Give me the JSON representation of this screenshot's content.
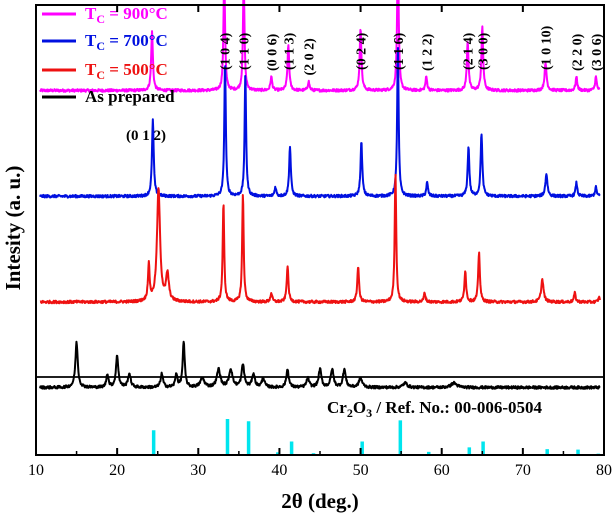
{
  "chart_data": {
    "type": "line",
    "title": "",
    "xlabel": "2θ (deg.)",
    "ylabel": "Intesity (a. u.)",
    "xlim": [
      10,
      80
    ],
    "x_ticks": [
      10,
      20,
      30,
      40,
      50,
      60,
      70,
      80
    ],
    "y_ticks": "none",
    "grid": false,
    "legend_position": "top-left",
    "colors": {
      "tc900": "#ff00ff",
      "tc700": "#0010e0",
      "tc500": "#ee1111",
      "asprep": "#000000",
      "ref": "#00e5ee"
    },
    "legend": [
      {
        "key": "tc900",
        "name": "T_C = 900°C",
        "base": "T",
        "sub": "C",
        "rest": " = 900°C"
      },
      {
        "key": "tc700",
        "name": "T_C = 700°C",
        "base": "T",
        "sub": "C",
        "rest": " = 700°C"
      },
      {
        "key": "tc500",
        "name": "T_C = 500°C",
        "base": "T",
        "sub": "C",
        "rest": " = 500°C"
      },
      {
        "key": "asprep",
        "name": "As prepared",
        "base": "As prepared",
        "sub": "",
        "rest": ""
      }
    ],
    "series": [
      {
        "key": "tc900",
        "name": "T_C = 900°C",
        "baseline": 0.81,
        "peaks": [
          [
            24.3,
            0.13,
            0.25
          ],
          [
            33.2,
            0.27,
            0.22
          ],
          [
            35.6,
            0.25,
            0.22
          ],
          [
            39.0,
            0.03,
            0.25
          ],
          [
            41.1,
            0.1,
            0.25
          ],
          [
            43.6,
            0.02,
            0.25
          ],
          [
            50.0,
            0.14,
            0.25
          ],
          [
            54.6,
            0.32,
            0.22
          ],
          [
            58.1,
            0.03,
            0.25
          ],
          [
            63.2,
            0.11,
            0.25
          ],
          [
            65.0,
            0.14,
            0.25
          ],
          [
            72.8,
            0.06,
            0.3
          ],
          [
            76.6,
            0.03,
            0.25
          ],
          [
            79.0,
            0.03,
            0.25
          ]
        ]
      },
      {
        "key": "tc700",
        "name": "T_C = 700°C",
        "baseline": 0.575,
        "peaks": [
          [
            24.4,
            0.17,
            0.25
          ],
          [
            33.3,
            0.3,
            0.22
          ],
          [
            35.8,
            0.27,
            0.22
          ],
          [
            39.5,
            0.02,
            0.25
          ],
          [
            41.3,
            0.11,
            0.25
          ],
          [
            50.1,
            0.12,
            0.25
          ],
          [
            54.6,
            0.33,
            0.22
          ],
          [
            58.2,
            0.03,
            0.25
          ],
          [
            63.3,
            0.11,
            0.25
          ],
          [
            64.9,
            0.14,
            0.25
          ],
          [
            72.9,
            0.05,
            0.3
          ],
          [
            76.6,
            0.03,
            0.25
          ],
          [
            79.0,
            0.02,
            0.25
          ]
        ]
      },
      {
        "key": "tc500",
        "name": "T_C = 500°C",
        "baseline": 0.34,
        "peaks": [
          [
            23.9,
            0.08,
            0.25
          ],
          [
            25.1,
            0.25,
            0.45
          ],
          [
            26.2,
            0.06,
            0.4
          ],
          [
            33.1,
            0.22,
            0.22
          ],
          [
            35.5,
            0.24,
            0.22
          ],
          [
            39.0,
            0.02,
            0.25
          ],
          [
            41.0,
            0.08,
            0.25
          ],
          [
            49.7,
            0.08,
            0.25
          ],
          [
            54.3,
            0.29,
            0.22
          ],
          [
            57.9,
            0.02,
            0.25
          ],
          [
            62.9,
            0.07,
            0.25
          ],
          [
            64.6,
            0.11,
            0.25
          ],
          [
            72.4,
            0.05,
            0.35
          ],
          [
            76.4,
            0.02,
            0.25
          ],
          [
            79.4,
            0.01,
            0.25
          ]
        ]
      },
      {
        "key": "asprep",
        "name": "As prepared",
        "baseline": 0.15,
        "peaks": [
          [
            15.0,
            0.1,
            0.35
          ],
          [
            18.8,
            0.03,
            0.3
          ],
          [
            20.0,
            0.07,
            0.35
          ],
          [
            21.5,
            0.03,
            0.4
          ],
          [
            25.5,
            0.03,
            0.35
          ],
          [
            27.3,
            0.03,
            0.3
          ],
          [
            28.2,
            0.1,
            0.3
          ],
          [
            30.5,
            0.02,
            0.6
          ],
          [
            32.5,
            0.04,
            0.5
          ],
          [
            34.0,
            0.04,
            0.5
          ],
          [
            35.5,
            0.05,
            0.4
          ],
          [
            36.8,
            0.03,
            0.4
          ],
          [
            38.0,
            0.02,
            0.4
          ],
          [
            41.0,
            0.04,
            0.35
          ],
          [
            43.5,
            0.02,
            0.4
          ],
          [
            45.0,
            0.04,
            0.4
          ],
          [
            46.5,
            0.04,
            0.4
          ],
          [
            48.0,
            0.04,
            0.4
          ],
          [
            50.0,
            0.02,
            0.5
          ],
          [
            55.5,
            0.01,
            0.6
          ],
          [
            61.5,
            0.01,
            0.8
          ]
        ]
      }
    ],
    "reference": {
      "label_main": "Cr",
      "label_sub1": "2",
      "label_mid": "O",
      "label_sub2": "3",
      "label_rest": " /  Ref. No.: 00-006-0504",
      "lines": [
        {
          "x": 24.5,
          "h": 0.055
        },
        {
          "x": 33.6,
          "h": 0.08
        },
        {
          "x": 36.2,
          "h": 0.075
        },
        {
          "x": 39.8,
          "h": 0.006
        },
        {
          "x": 41.5,
          "h": 0.03
        },
        {
          "x": 44.2,
          "h": 0.004
        },
        {
          "x": 50.2,
          "h": 0.03
        },
        {
          "x": 54.9,
          "h": 0.077
        },
        {
          "x": 58.4,
          "h": 0.007
        },
        {
          "x": 63.4,
          "h": 0.017
        },
        {
          "x": 65.1,
          "h": 0.03
        },
        {
          "x": 73.0,
          "h": 0.013
        },
        {
          "x": 76.8,
          "h": 0.012
        },
        {
          "x": 79.3,
          "h": 0.003
        }
      ]
    },
    "hkl_labels": [
      {
        "x": 24.3,
        "text": "(0 1 2)",
        "orientation": "horizontal"
      },
      {
        "x": 33.2,
        "text": "(1 0 4)",
        "orientation": "vertical"
      },
      {
        "x": 35.6,
        "text": "(1 1 0)",
        "orientation": "vertical"
      },
      {
        "x": 39.0,
        "text": "(0 0 6)",
        "orientation": "vertical"
      },
      {
        "x": 41.1,
        "text": "(1 1 3)",
        "orientation": "vertical"
      },
      {
        "x": 43.6,
        "text": "(2 0 2)",
        "orientation": "vertical"
      },
      {
        "x": 50.0,
        "text": "(0 2 4)",
        "orientation": "vertical"
      },
      {
        "x": 54.6,
        "text": "(1 1 6)",
        "orientation": "vertical"
      },
      {
        "x": 58.1,
        "text": "(1 2 2)",
        "orientation": "vertical"
      },
      {
        "x": 63.2,
        "text": "(2 1 4)",
        "orientation": "vertical"
      },
      {
        "x": 65.0,
        "text": "(3 0 0)",
        "orientation": "vertical"
      },
      {
        "x": 72.8,
        "text": "(1 0 10)",
        "orientation": "vertical"
      },
      {
        "x": 76.6,
        "text": "(2 2 0)",
        "orientation": "vertical"
      },
      {
        "x": 79.0,
        "text": "(3 0 6)",
        "orientation": "vertical"
      }
    ]
  }
}
